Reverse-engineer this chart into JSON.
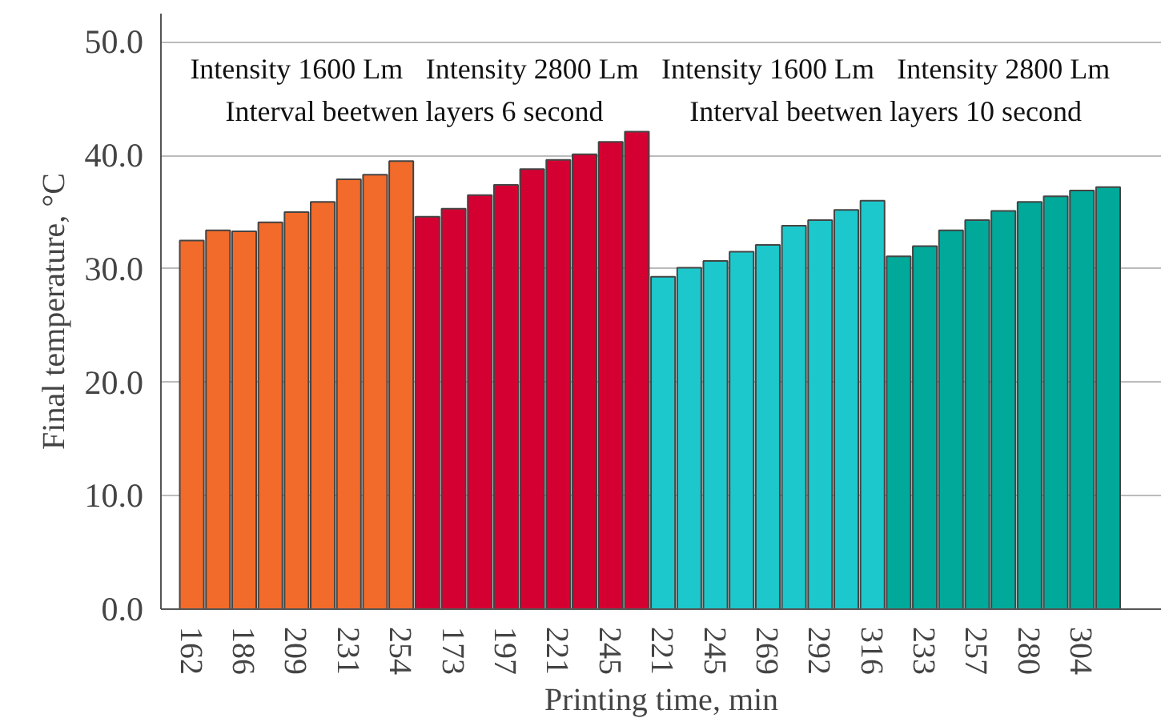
{
  "chart_data": {
    "type": "bar",
    "xlabel": "Printing time, min",
    "ylabel": "Final temperature, °C",
    "categories": [
      "162",
      null,
      "186",
      null,
      "209",
      null,
      "231",
      null,
      "254",
      null,
      "173",
      null,
      "197",
      null,
      "221",
      null,
      "245",
      null,
      "221",
      null,
      "245",
      null,
      "269",
      null,
      "292",
      null,
      "316",
      null,
      "233",
      null,
      "257",
      null,
      "280",
      null,
      "304",
      null
    ],
    "values": [
      32.5,
      33.4,
      33.3,
      34.1,
      35.0,
      35.9,
      37.9,
      38.3,
      39.5,
      34.6,
      35.3,
      36.5,
      37.4,
      38.8,
      39.6,
      40.1,
      41.2,
      42.1,
      29.3,
      30.1,
      30.7,
      31.5,
      32.1,
      33.8,
      34.3,
      35.2,
      36.0,
      31.1,
      32.0,
      33.4,
      34.3,
      35.1,
      35.9,
      36.4,
      36.9,
      37.2
    ],
    "colors": [
      "#f26b2a",
      "#f26b2a",
      "#f26b2a",
      "#f26b2a",
      "#f26b2a",
      "#f26b2a",
      "#f26b2a",
      "#f26b2a",
      "#f26b2a",
      "#d50032",
      "#d50032",
      "#d50032",
      "#d50032",
      "#d50032",
      "#d50032",
      "#d50032",
      "#d50032",
      "#d50032",
      "#1cc8cc",
      "#1cc8cc",
      "#1cc8cc",
      "#1cc8cc",
      "#1cc8cc",
      "#1cc8cc",
      "#1cc8cc",
      "#1cc8cc",
      "#1cc8cc",
      "#00a99a",
      "#00a99a",
      "#00a99a",
      "#00a99a",
      "#00a99a",
      "#00a99a",
      "#00a99a",
      "#00a99a",
      "#00a99a"
    ],
    "ylim": [
      0,
      52.5
    ],
    "yticks": [
      {
        "value": 0,
        "label": "0.0"
      },
      {
        "value": 10,
        "label": "10.0"
      },
      {
        "value": 20,
        "label": "20.0"
      },
      {
        "value": 30,
        "label": "30.0"
      },
      {
        "value": 40,
        "label": "40.0"
      },
      {
        "value": 50,
        "label": "50.0"
      }
    ],
    "grid": "y",
    "annotations": [
      "Intensity 1600 Lm",
      "Intensity 2800 Lm",
      "Intensity 1600 Lm",
      "Intensity 2800 Lm",
      "Interval beetwen layers 6 second",
      "Interval beetwen layers 10 second"
    ]
  }
}
